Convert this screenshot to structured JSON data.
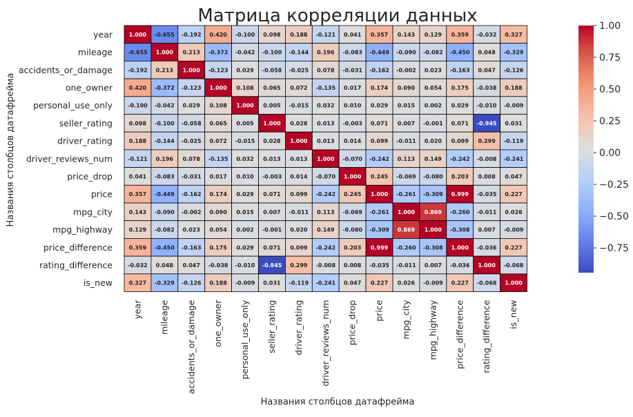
{
  "chart_data": {
    "type": "heatmap",
    "title": "Матрица корреляции данных",
    "xlabel": "Названия столбцов датафрейма",
    "ylabel": "Названия столбцов датафрейма",
    "rows": [
      "year",
      "mileage",
      "accidents_or_damage",
      "one_owner",
      "personal_use_only",
      "seller_rating",
      "driver_rating",
      "driver_reviews_num",
      "price_drop",
      "price",
      "mpg_city",
      "mpg_highway",
      "price_difference",
      "rating_difference",
      "is_new"
    ],
    "columns": [
      "year",
      "mileage",
      "accidents_or_damage",
      "one_owner",
      "personal_use_only",
      "seller_rating",
      "driver_rating",
      "driver_reviews_num",
      "price_drop",
      "price",
      "mpg_city",
      "mpg_highway",
      "price_difference",
      "rating_difference",
      "is_new"
    ],
    "values": [
      [
        1.0,
        -0.655,
        -0.192,
        0.42,
        -0.1,
        0.098,
        0.188,
        -0.121,
        0.041,
        0.357,
        0.143,
        0.129,
        0.359,
        -0.032,
        0.327
      ],
      [
        -0.655,
        1.0,
        0.213,
        -0.372,
        -0.042,
        -0.1,
        -0.144,
        0.196,
        -0.083,
        -0.449,
        -0.09,
        -0.082,
        -0.45,
        0.048,
        -0.329
      ],
      [
        -0.192,
        0.213,
        1.0,
        -0.123,
        0.029,
        -0.058,
        -0.025,
        0.078,
        -0.031,
        -0.162,
        -0.002,
        0.023,
        -0.163,
        0.047,
        -0.126
      ],
      [
        0.42,
        -0.372,
        -0.123,
        1.0,
        0.108,
        0.065,
        0.072,
        -0.135,
        0.017,
        0.174,
        0.09,
        0.054,
        0.175,
        -0.038,
        0.188
      ],
      [
        -0.1,
        -0.042,
        0.029,
        0.108,
        1.0,
        0.005,
        -0.015,
        0.032,
        0.01,
        0.029,
        0.015,
        0.002,
        0.029,
        -0.01,
        -0.009
      ],
      [
        0.098,
        -0.1,
        -0.058,
        0.065,
        0.005,
        1.0,
        0.028,
        0.013,
        -0.003,
        0.071,
        0.007,
        -0.001,
        0.071,
        -0.945,
        0.031
      ],
      [
        0.188,
        -0.144,
        -0.025,
        0.072,
        -0.015,
        0.028,
        1.0,
        0.013,
        0.014,
        0.099,
        -0.011,
        0.02,
        0.099,
        0.299,
        -0.119
      ],
      [
        -0.121,
        0.196,
        0.078,
        -0.135,
        0.032,
        0.013,
        0.013,
        1.0,
        -0.07,
        -0.242,
        0.113,
        0.149,
        -0.242,
        -0.008,
        -0.241
      ],
      [
        0.041,
        -0.083,
        -0.031,
        0.017,
        0.01,
        -0.003,
        0.014,
        -0.07,
        1.0,
        0.245,
        -0.069,
        -0.08,
        0.203,
        0.008,
        0.047
      ],
      [
        0.357,
        -0.449,
        -0.162,
        0.174,
        0.029,
        0.071,
        0.099,
        -0.242,
        0.245,
        1.0,
        -0.261,
        -0.309,
        0.999,
        -0.035,
        0.227
      ],
      [
        0.143,
        -0.09,
        -0.002,
        0.09,
        0.015,
        0.007,
        -0.011,
        0.113,
        -0.069,
        -0.261,
        1.0,
        0.869,
        -0.26,
        -0.011,
        0.026
      ],
      [
        0.129,
        -0.082,
        0.023,
        0.054,
        0.002,
        -0.001,
        0.02,
        0.149,
        -0.08,
        -0.309,
        0.869,
        1.0,
        -0.308,
        0.007,
        -0.009
      ],
      [
        0.359,
        -0.45,
        -0.163,
        0.175,
        0.029,
        0.071,
        0.099,
        -0.242,
        0.203,
        0.999,
        -0.26,
        -0.308,
        1.0,
        -0.036,
        0.227
      ],
      [
        -0.032,
        0.048,
        0.047,
        -0.038,
        -0.01,
        -0.945,
        0.299,
        -0.008,
        0.008,
        -0.035,
        -0.011,
        0.007,
        -0.036,
        1.0,
        -0.068
      ],
      [
        0.327,
        -0.329,
        -0.126,
        0.188,
        -0.009,
        0.031,
        -0.119,
        -0.241,
        0.047,
        0.227,
        0.026,
        -0.009,
        0.227,
        -0.068,
        1.0
      ]
    ],
    "colormap": "coolwarm",
    "vmin": -0.945,
    "vmax": 1.0,
    "annotation_format": "0.000",
    "colorbar": {
      "ticks": [
        1.0,
        0.75,
        0.5,
        0.25,
        0.0,
        -0.25,
        -0.5,
        -0.75
      ],
      "tick_labels": [
        "1.00",
        "0.75",
        "0.50",
        "0.25",
        "0.00",
        "−0.25",
        "−0.50",
        "−0.75"
      ]
    },
    "colors": {
      "cell_border": "#000000",
      "text_dark": "#222222",
      "text_light": "#ffffff"
    },
    "grid": false,
    "legend": "colorbar-right"
  }
}
